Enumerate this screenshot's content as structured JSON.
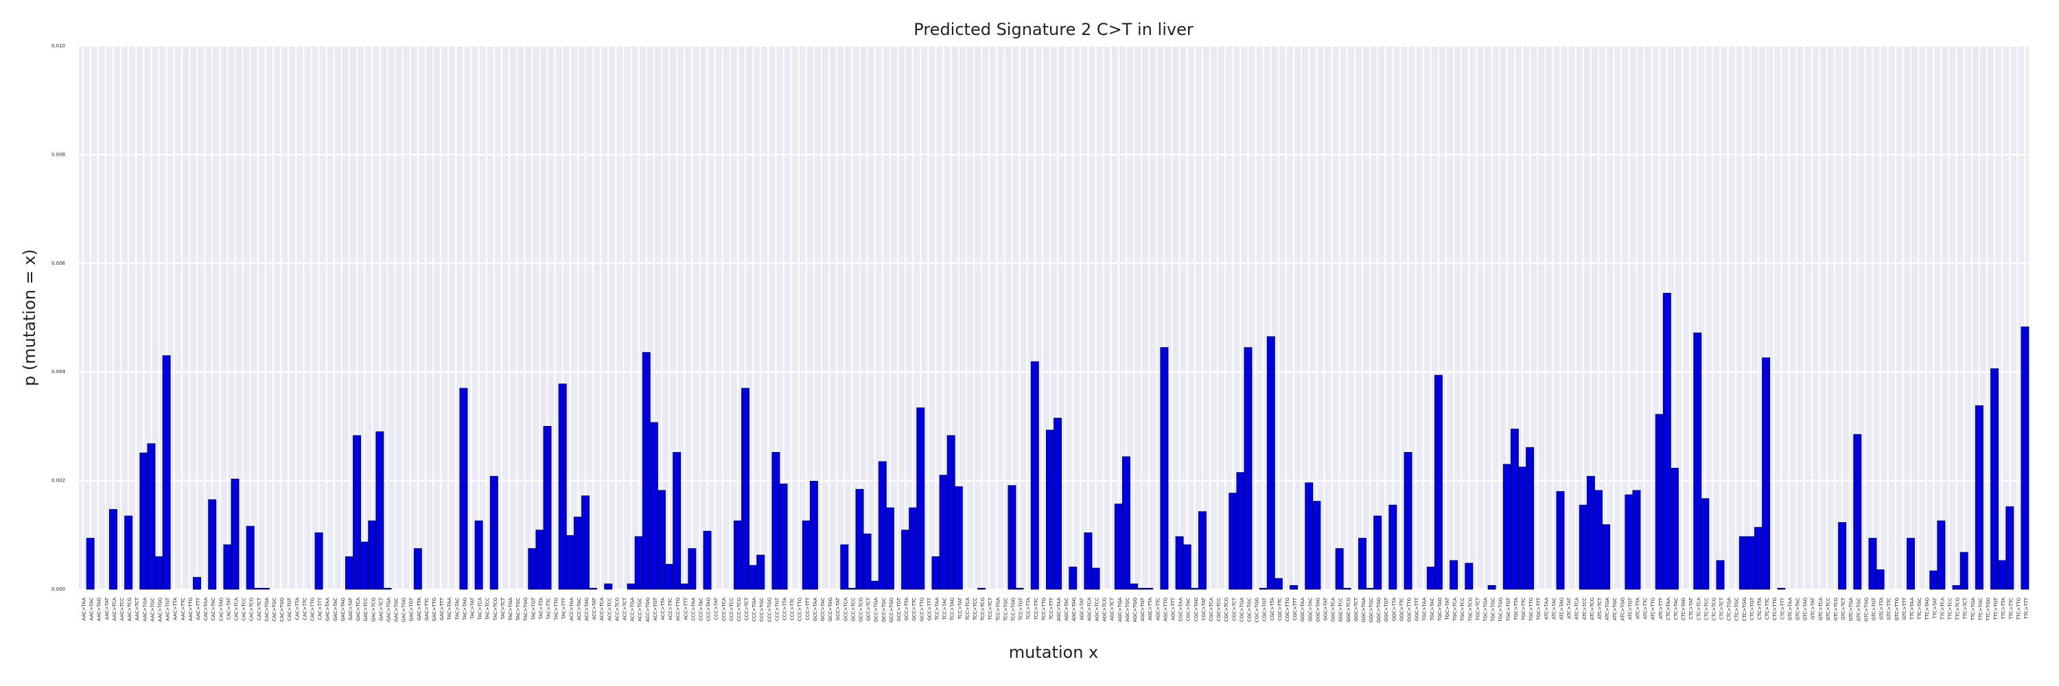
{
  "chart_data": {
    "type": "bar",
    "title": "Predicted Signature 2 C>T in liver",
    "xlabel": "mutation x",
    "ylabel": "p (mutation = x)",
    "color": "#0000dd",
    "grid": true,
    "ylim": [
      0,
      0.01
    ],
    "yticks": [
      {
        "value": 0,
        "label": "0.000"
      },
      {
        "value": 0.002,
        "label": "0.002"
      },
      {
        "value": 0.004,
        "label": "0.004"
      },
      {
        "value": 0.006,
        "label": "0.006"
      },
      {
        "value": 0.008,
        "label": "0.008"
      },
      {
        "value": 0.01,
        "label": "0.010"
      }
    ],
    "categories": [
      "AAC>TAA",
      "AAC>TAC",
      "AAC>TAG",
      "AAC>TAT",
      "AAC>TCA",
      "AAC>TCC",
      "AAC>TCG",
      "AAC>TCT",
      "AAC>TGA",
      "AAC>TGC",
      "AAC>TGG",
      "AAC>TGT",
      "AAC>TTA",
      "AAC>TTC",
      "AAC>TTG",
      "AAC>TTT",
      "CAC>TAA",
      "CAC>TAC",
      "CAC>TAG",
      "CAC>TAT",
      "CAC>TCA",
      "CAC>TCC",
      "CAC>TCG",
      "CAC>TCT",
      "CAC>TGA",
      "CAC>TGC",
      "CAC>TGG",
      "CAC>TGT",
      "CAC>TTA",
      "CAC>TTC",
      "CAC>TTG",
      "CAC>TTT",
      "GAC>TAA",
      "GAC>TAC",
      "GAC>TAG",
      "GAC>TAT",
      "GAC>TCA",
      "GAC>TCC",
      "GAC>TCG",
      "GAC>TCT",
      "GAC>TGA",
      "GAC>TGC",
      "GAC>TGG",
      "GAC>TGT",
      "GAC>TTA",
      "GAC>TTC",
      "GAC>TTG",
      "GAC>TTT",
      "TAC>TAA",
      "TAC>TAC",
      "TAC>TAG",
      "TAC>TAT",
      "TAC>TCA",
      "TAC>TCC",
      "TAC>TCG",
      "TAC>TCT",
      "TAC>TGA",
      "TAC>TGC",
      "TAC>TGG",
      "TAC>TGT",
      "TAC>TTA",
      "TAC>TTC",
      "TAC>TTG",
      "TAC>TTT",
      "ACC>TAA",
      "ACC>TAC",
      "ACC>TAG",
      "ACC>TAT",
      "ACC>TCA",
      "ACC>TCC",
      "ACC>TCG",
      "ACC>TCT",
      "ACC>TGA",
      "ACC>TGC",
      "ACC>TGG",
      "ACC>TGT",
      "ACC>TTA",
      "ACC>TTC",
      "ACC>TTG",
      "ACC>TTT",
      "CCC>TAA",
      "CCC>TAC",
      "CCC>TAG",
      "CCC>TAT",
      "CCC>TCA",
      "CCC>TCC",
      "CCC>TCG",
      "CCC>TCT",
      "CCC>TGA",
      "CCC>TGC",
      "CCC>TGG",
      "CCC>TGT",
      "CCC>TTA",
      "CCC>TTC",
      "CCC>TTG",
      "CCC>TTT",
      "GCC>TAA",
      "GCC>TAC",
      "GCC>TAG",
      "GCC>TAT",
      "GCC>TCA",
      "GCC>TCC",
      "GCC>TCG",
      "GCC>TCT",
      "GCC>TGA",
      "GCC>TGC",
      "GCC>TGG",
      "GCC>TGT",
      "GCC>TTA",
      "GCC>TTC",
      "GCC>TTG",
      "GCC>TTT",
      "TCC>TAA",
      "TCC>TAC",
      "TCC>TAG",
      "TCC>TAT",
      "TCC>TCA",
      "TCC>TCC",
      "TCC>TCG",
      "TCC>TCT",
      "TCC>TGA",
      "TCC>TGC",
      "TCC>TGG",
      "TCC>TGT",
      "TCC>TTA",
      "TCC>TTC",
      "TCC>TTG",
      "TCC>TTT",
      "AGC>TAA",
      "AGC>TAC",
      "AGC>TAG",
      "AGC>TAT",
      "AGC>TCA",
      "AGC>TCC",
      "AGC>TCG",
      "AGC>TCT",
      "AGC>TGA",
      "AGC>TGC",
      "AGC>TGG",
      "AGC>TGT",
      "AGC>TTA",
      "AGC>TTC",
      "AGC>TTG",
      "AGC>TTT",
      "CGC>TAA",
      "CGC>TAC",
      "CGC>TAG",
      "CGC>TAT",
      "CGC>TCA",
      "CGC>TCC",
      "CGC>TCG",
      "CGC>TCT",
      "CGC>TGA",
      "CGC>TGC",
      "CGC>TGG",
      "CGC>TGT",
      "CGC>TTA",
      "CGC>TTC",
      "CGC>TTG",
      "CGC>TTT",
      "GGC>TAA",
      "GGC>TAC",
      "GGC>TAG",
      "GGC>TAT",
      "GGC>TCA",
      "GGC>TCC",
      "GGC>TCG",
      "GGC>TCT",
      "GGC>TGA",
      "GGC>TGC",
      "GGC>TGG",
      "GGC>TGT",
      "GGC>TTA",
      "GGC>TTC",
      "GGC>TTG",
      "GGC>TTT",
      "TGC>TAA",
      "TGC>TAC",
      "TGC>TAG",
      "TGC>TAT",
      "TGC>TCA",
      "TGC>TCC",
      "TGC>TCG",
      "TGC>TCT",
      "TGC>TGA",
      "TGC>TGC",
      "TGC>TGG",
      "TGC>TGT",
      "TGC>TTA",
      "TGC>TTC",
      "TGC>TTG",
      "TGC>TTT",
      "ATC>TAA",
      "ATC>TAC",
      "ATC>TAG",
      "ATC>TAT",
      "ATC>TCA",
      "ATC>TCC",
      "ATC>TCG",
      "ATC>TCT",
      "ATC>TGA",
      "ATC>TGC",
      "ATC>TGG",
      "ATC>TGT",
      "ATC>TTA",
      "ATC>TTC",
      "ATC>TTG",
      "ATC>TTT",
      "CTC>TAA",
      "CTC>TAC",
      "CTC>TAG",
      "CTC>TAT",
      "CTC>TCA",
      "CTC>TCC",
      "CTC>TCG",
      "CTC>TCT",
      "CTC>TGA",
      "CTC>TGC",
      "CTC>TGG",
      "CTC>TGT",
      "CTC>TTA",
      "CTC>TTC",
      "CTC>TTG",
      "CTC>TTT",
      "GTC>TAA",
      "GTC>TAC",
      "GTC>TAG",
      "GTC>TAT",
      "GTC>TCA",
      "GTC>TCC",
      "GTC>TCG",
      "GTC>TCT",
      "GTC>TGA",
      "GTC>TGC",
      "GTC>TGG",
      "GTC>TGT",
      "GTC>TTA",
      "GTC>TTC",
      "GTC>TTG",
      "GTC>TTT",
      "TTC>TAA",
      "TTC>TAC",
      "TTC>TAG",
      "TTC>TAT",
      "TTC>TCA",
      "TTC>TCC",
      "TTC>TCG",
      "TTC>TCT",
      "TTC>TGA",
      "TTC>TGC",
      "TTC>TGG",
      "TTC>TGT",
      "TTC>TTA",
      "TTC>TTC",
      "TTC>TTG",
      "TTC>TTT"
    ],
    "values": [
      0,
      0.00094,
      0,
      0,
      0.00147,
      0,
      0.00135,
      0,
      0.00251,
      0.00268,
      0.0006,
      0.0043,
      0,
      0,
      0,
      0.00022,
      0,
      0.00165,
      0,
      0.00082,
      0.00203,
      0,
      0.00116,
      2e-05,
      2e-05,
      0,
      0,
      0,
      0,
      0,
      0,
      0.00104,
      0,
      0,
      0,
      0.0006,
      0.00283,
      0.00087,
      0.00126,
      0.0029,
      2e-05,
      0,
      0,
      0,
      0.00075,
      0,
      0,
      0,
      0,
      0,
      0.0037,
      0,
      0.00126,
      0,
      0.00208,
      0,
      0,
      0,
      0,
      0.00075,
      0.00109,
      0.003,
      0,
      0.00378,
      0.00099,
      0.00133,
      0.00172,
      2e-05,
      0,
      0.0001,
      0,
      0,
      0.0001,
      0.00097,
      0.00436,
      0.00307,
      0.00182,
      0.00046,
      0.00252,
      0.0001,
      0.00075,
      0,
      0.00107,
      0,
      0,
      0,
      0.00126,
      0.0037,
      0.00044,
      0.00063,
      0,
      0.00252,
      0.00194,
      0,
      0,
      0.00126,
      0.00199,
      0,
      0,
      0,
      0.00082,
      2e-05,
      0.00184,
      0.00102,
      0.00015,
      0.00235,
      0.0015,
      0,
      0.00109,
      0.0015,
      0.00334,
      0,
      0.0006,
      0.0021,
      0.00283,
      0.00189,
      0,
      0,
      2e-05,
      0,
      0,
      0,
      0.00191,
      2e-05,
      0,
      0.00419,
      0,
      0.00293,
      0.00315,
      0,
      0.00041,
      0,
      0.00104,
      0.00039,
      0,
      0,
      0.00157,
      0.00244,
      0.0001,
      2e-05,
      2e-05,
      0,
      0.00445,
      0,
      0.00097,
      0.00082,
      2e-05,
      0.00143,
      0,
      0,
      0,
      0.00177,
      0.00215,
      0.00445,
      0,
      2e-05,
      0.00465,
      0.0002,
      0,
      7e-05,
      0,
      0.00196,
      0.00162,
      0,
      0,
      0.00075,
      2e-05,
      0,
      0.00094,
      2e-05,
      0.00135,
      0,
      0.00155,
      0,
      0.00252,
      0,
      0,
      0.00041,
      0.00394,
      0,
      0.00053,
      0,
      0.00048,
      0,
      0,
      7e-05,
      0,
      0.0023,
      0.00295,
      0.00225,
      0.00261,
      0,
      0,
      0,
      0.0018,
      0,
      0,
      0.00155,
      0.00208,
      0.00182,
      0.00119,
      0,
      0,
      0.00174,
      0.00182,
      0,
      0,
      0.00322,
      0.00545,
      0.00223,
      0,
      0,
      0.00472,
      0.00167,
      0,
      0.00053,
      0,
      0,
      0.00097,
      0.00097,
      0.00114,
      0.00426,
      0,
      2e-05,
      0,
      0,
      0,
      0,
      0,
      0,
      0,
      0.00123,
      0,
      0.00285,
      0,
      0.00094,
      0.00036,
      0,
      0,
      0,
      0.00094,
      0,
      0,
      0.00034,
      0.00126,
      0,
      7e-05,
      0.00068,
      0,
      0.00338,
      0,
      0.00406,
      0.00053,
      0.00152,
      0,
      0.00483
    ]
  }
}
